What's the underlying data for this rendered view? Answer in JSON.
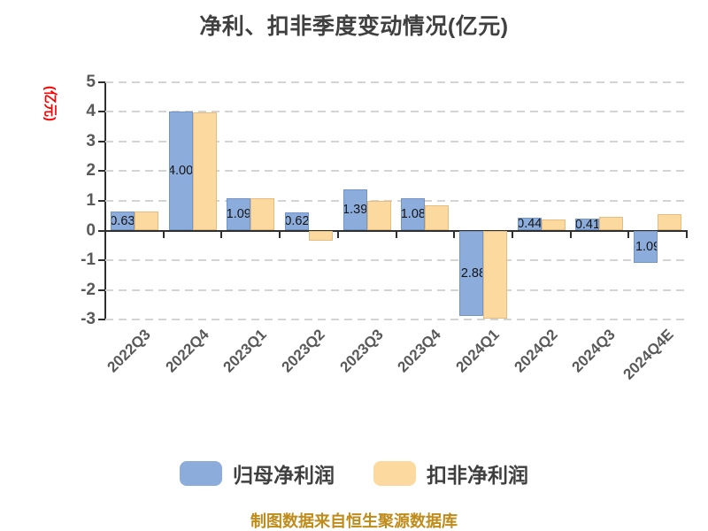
{
  "title": "净利、扣非季度变动情况(亿元)",
  "y_axis_unit_label": "(亿元)",
  "footer": {
    "source_note": "制图数据来自恒生聚源数据库"
  },
  "legend": {
    "items": [
      {
        "label": "归母净利润",
        "color": "#8CACDB"
      },
      {
        "label": "扣非净利润",
        "color": "#FCD99E"
      }
    ]
  },
  "chart_data": {
    "type": "bar",
    "title": "净利、扣非季度变动情况(亿元)",
    "ylabel": "(亿元)",
    "categories": [
      "2022Q3",
      "2022Q4",
      "2023Q1",
      "2023Q2",
      "2023Q3",
      "2023Q4",
      "2024Q1",
      "2024Q2",
      "2024Q3",
      "2024Q4E"
    ],
    "series": [
      {
        "name": "归母净利润",
        "color": "#8CACDB",
        "border_color": "#7394C6",
        "values": [
          0.63,
          4.0,
          1.09,
          0.62,
          1.39,
          1.08,
          -2.88,
          0.44,
          0.41,
          -1.09
        ],
        "labels": [
          "0.63",
          "4.00",
          "1.09",
          "0.62",
          "1.39",
          "1.08",
          "-2.88",
          "0.44",
          "0.41",
          "-1.09"
        ],
        "labels_visible": true
      },
      {
        "name": "扣非净利润",
        "color": "#FCD99E",
        "border_color": "#E6BD7E",
        "values": [
          0.65,
          3.97,
          1.1,
          -0.35,
          1.0,
          0.86,
          -2.95,
          0.37,
          0.47,
          0.55
        ],
        "labels": [],
        "labels_visible": false
      }
    ],
    "y_ticks": [
      5,
      4,
      3,
      2,
      1,
      0,
      -1,
      -2,
      -3
    ],
    "ylim": [
      -3,
      5
    ],
    "grid": "horizontal-dashed",
    "legend_position": "bottom",
    "x_tick_label_rotation_deg": -45
  },
  "colors": {
    "title_text": "#404040",
    "axis_line": "#2f2f2f",
    "tick_label": "#595959",
    "gridline": "#d4d4d4",
    "ylabel_text": "#ff0000",
    "bar_value_label": "#141414",
    "footer_text": "#bf8b1a",
    "background": "#ffffff"
  }
}
